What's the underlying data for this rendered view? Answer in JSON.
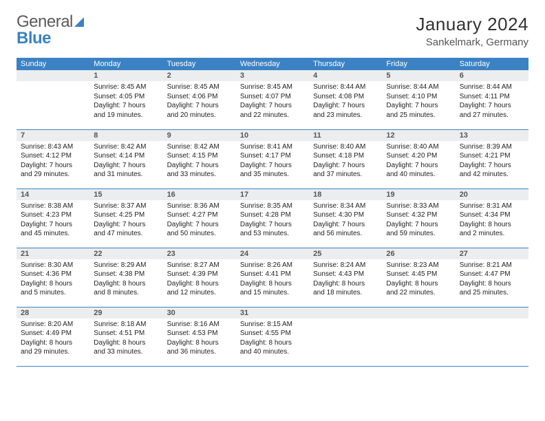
{
  "brand": {
    "word1": "General",
    "word2": "Blue"
  },
  "title": "January 2024",
  "location": "Sankelmark, Germany",
  "colors": {
    "header_bg": "#3b82c4",
    "header_fg": "#ffffff",
    "daynum_bg": "#ecedee",
    "border": "#3b82c4",
    "page_bg": "#ffffff",
    "text": "#222222"
  },
  "typography": {
    "title_fontsize": 26,
    "location_fontsize": 15,
    "weekday_fontsize": 11,
    "daynum_fontsize": 11,
    "body_fontsize": 10
  },
  "weekdays": [
    "Sunday",
    "Monday",
    "Tuesday",
    "Wednesday",
    "Thursday",
    "Friday",
    "Saturday"
  ],
  "weeks": [
    [
      {
        "n": "",
        "sunrise": "",
        "sunset": "",
        "daylight": ""
      },
      {
        "n": "1",
        "sunrise": "Sunrise: 8:45 AM",
        "sunset": "Sunset: 4:05 PM",
        "daylight": "Daylight: 7 hours and 19 minutes."
      },
      {
        "n": "2",
        "sunrise": "Sunrise: 8:45 AM",
        "sunset": "Sunset: 4:06 PM",
        "daylight": "Daylight: 7 hours and 20 minutes."
      },
      {
        "n": "3",
        "sunrise": "Sunrise: 8:45 AM",
        "sunset": "Sunset: 4:07 PM",
        "daylight": "Daylight: 7 hours and 22 minutes."
      },
      {
        "n": "4",
        "sunrise": "Sunrise: 8:44 AM",
        "sunset": "Sunset: 4:08 PM",
        "daylight": "Daylight: 7 hours and 23 minutes."
      },
      {
        "n": "5",
        "sunrise": "Sunrise: 8:44 AM",
        "sunset": "Sunset: 4:10 PM",
        "daylight": "Daylight: 7 hours and 25 minutes."
      },
      {
        "n": "6",
        "sunrise": "Sunrise: 8:44 AM",
        "sunset": "Sunset: 4:11 PM",
        "daylight": "Daylight: 7 hours and 27 minutes."
      }
    ],
    [
      {
        "n": "7",
        "sunrise": "Sunrise: 8:43 AM",
        "sunset": "Sunset: 4:12 PM",
        "daylight": "Daylight: 7 hours and 29 minutes."
      },
      {
        "n": "8",
        "sunrise": "Sunrise: 8:42 AM",
        "sunset": "Sunset: 4:14 PM",
        "daylight": "Daylight: 7 hours and 31 minutes."
      },
      {
        "n": "9",
        "sunrise": "Sunrise: 8:42 AM",
        "sunset": "Sunset: 4:15 PM",
        "daylight": "Daylight: 7 hours and 33 minutes."
      },
      {
        "n": "10",
        "sunrise": "Sunrise: 8:41 AM",
        "sunset": "Sunset: 4:17 PM",
        "daylight": "Daylight: 7 hours and 35 minutes."
      },
      {
        "n": "11",
        "sunrise": "Sunrise: 8:40 AM",
        "sunset": "Sunset: 4:18 PM",
        "daylight": "Daylight: 7 hours and 37 minutes."
      },
      {
        "n": "12",
        "sunrise": "Sunrise: 8:40 AM",
        "sunset": "Sunset: 4:20 PM",
        "daylight": "Daylight: 7 hours and 40 minutes."
      },
      {
        "n": "13",
        "sunrise": "Sunrise: 8:39 AM",
        "sunset": "Sunset: 4:21 PM",
        "daylight": "Daylight: 7 hours and 42 minutes."
      }
    ],
    [
      {
        "n": "14",
        "sunrise": "Sunrise: 8:38 AM",
        "sunset": "Sunset: 4:23 PM",
        "daylight": "Daylight: 7 hours and 45 minutes."
      },
      {
        "n": "15",
        "sunrise": "Sunrise: 8:37 AM",
        "sunset": "Sunset: 4:25 PM",
        "daylight": "Daylight: 7 hours and 47 minutes."
      },
      {
        "n": "16",
        "sunrise": "Sunrise: 8:36 AM",
        "sunset": "Sunset: 4:27 PM",
        "daylight": "Daylight: 7 hours and 50 minutes."
      },
      {
        "n": "17",
        "sunrise": "Sunrise: 8:35 AM",
        "sunset": "Sunset: 4:28 PM",
        "daylight": "Daylight: 7 hours and 53 minutes."
      },
      {
        "n": "18",
        "sunrise": "Sunrise: 8:34 AM",
        "sunset": "Sunset: 4:30 PM",
        "daylight": "Daylight: 7 hours and 56 minutes."
      },
      {
        "n": "19",
        "sunrise": "Sunrise: 8:33 AM",
        "sunset": "Sunset: 4:32 PM",
        "daylight": "Daylight: 7 hours and 59 minutes."
      },
      {
        "n": "20",
        "sunrise": "Sunrise: 8:31 AM",
        "sunset": "Sunset: 4:34 PM",
        "daylight": "Daylight: 8 hours and 2 minutes."
      }
    ],
    [
      {
        "n": "21",
        "sunrise": "Sunrise: 8:30 AM",
        "sunset": "Sunset: 4:36 PM",
        "daylight": "Daylight: 8 hours and 5 minutes."
      },
      {
        "n": "22",
        "sunrise": "Sunrise: 8:29 AM",
        "sunset": "Sunset: 4:38 PM",
        "daylight": "Daylight: 8 hours and 8 minutes."
      },
      {
        "n": "23",
        "sunrise": "Sunrise: 8:27 AM",
        "sunset": "Sunset: 4:39 PM",
        "daylight": "Daylight: 8 hours and 12 minutes."
      },
      {
        "n": "24",
        "sunrise": "Sunrise: 8:26 AM",
        "sunset": "Sunset: 4:41 PM",
        "daylight": "Daylight: 8 hours and 15 minutes."
      },
      {
        "n": "25",
        "sunrise": "Sunrise: 8:24 AM",
        "sunset": "Sunset: 4:43 PM",
        "daylight": "Daylight: 8 hours and 18 minutes."
      },
      {
        "n": "26",
        "sunrise": "Sunrise: 8:23 AM",
        "sunset": "Sunset: 4:45 PM",
        "daylight": "Daylight: 8 hours and 22 minutes."
      },
      {
        "n": "27",
        "sunrise": "Sunrise: 8:21 AM",
        "sunset": "Sunset: 4:47 PM",
        "daylight": "Daylight: 8 hours and 25 minutes."
      }
    ],
    [
      {
        "n": "28",
        "sunrise": "Sunrise: 8:20 AM",
        "sunset": "Sunset: 4:49 PM",
        "daylight": "Daylight: 8 hours and 29 minutes."
      },
      {
        "n": "29",
        "sunrise": "Sunrise: 8:18 AM",
        "sunset": "Sunset: 4:51 PM",
        "daylight": "Daylight: 8 hours and 33 minutes."
      },
      {
        "n": "30",
        "sunrise": "Sunrise: 8:16 AM",
        "sunset": "Sunset: 4:53 PM",
        "daylight": "Daylight: 8 hours and 36 minutes."
      },
      {
        "n": "31",
        "sunrise": "Sunrise: 8:15 AM",
        "sunset": "Sunset: 4:55 PM",
        "daylight": "Daylight: 8 hours and 40 minutes."
      },
      {
        "n": "",
        "sunrise": "",
        "sunset": "",
        "daylight": ""
      },
      {
        "n": "",
        "sunrise": "",
        "sunset": "",
        "daylight": ""
      },
      {
        "n": "",
        "sunrise": "",
        "sunset": "",
        "daylight": ""
      }
    ]
  ]
}
